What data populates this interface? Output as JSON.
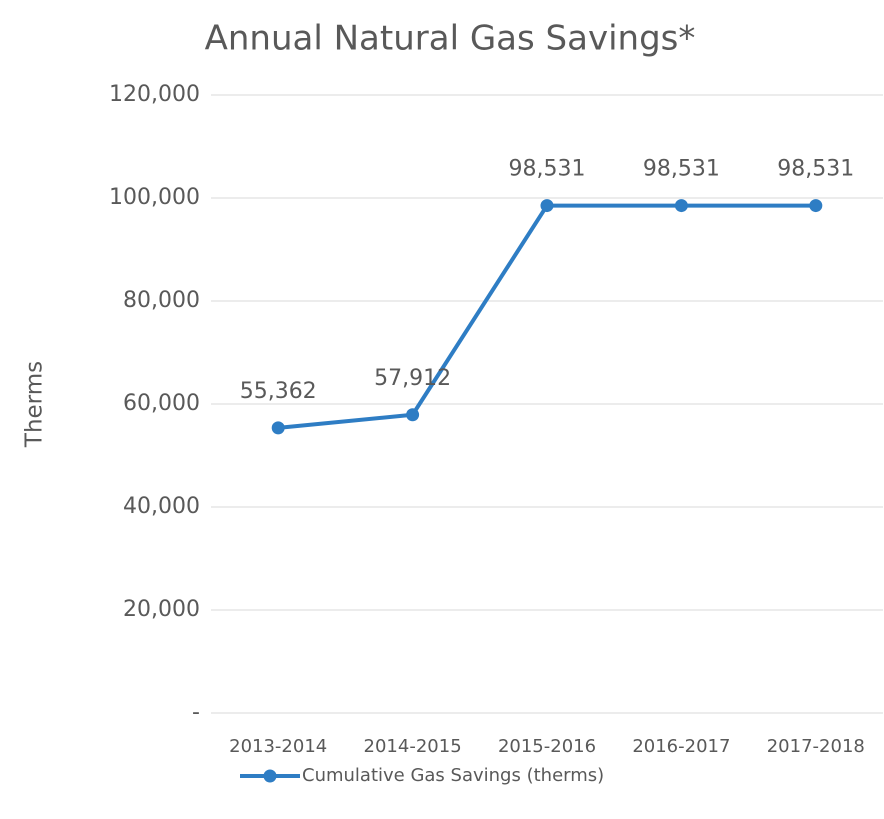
{
  "chart_data": {
    "type": "line",
    "title": "Annual Natural Gas Savings*",
    "y_label": "Therms",
    "categories": [
      "2013-2014",
      "2014-2015",
      "2015-2016",
      "2016-2017",
      "2017-2018"
    ],
    "series": [
      {
        "name": "Cumulative Gas Savings (therms)",
        "color": "#2e7dc4",
        "values": [
          55362,
          57912,
          98531,
          98531,
          98531
        ],
        "value_labels": [
          "55,362",
          "57,912",
          "98,531",
          "98,531",
          "98,531"
        ]
      }
    ],
    "ylim": [
      0,
      120000
    ],
    "yticks": [
      {
        "value": 0,
        "label": "-"
      },
      {
        "value": 20000,
        "label": "20,000"
      },
      {
        "value": 40000,
        "label": "40,000"
      },
      {
        "value": 60000,
        "label": "60,000"
      },
      {
        "value": 80000,
        "label": "80,000"
      },
      {
        "value": 100000,
        "label": "100,000"
      },
      {
        "value": 120000,
        "label": "120,000"
      }
    ],
    "grid": true,
    "legend": "bottom"
  }
}
